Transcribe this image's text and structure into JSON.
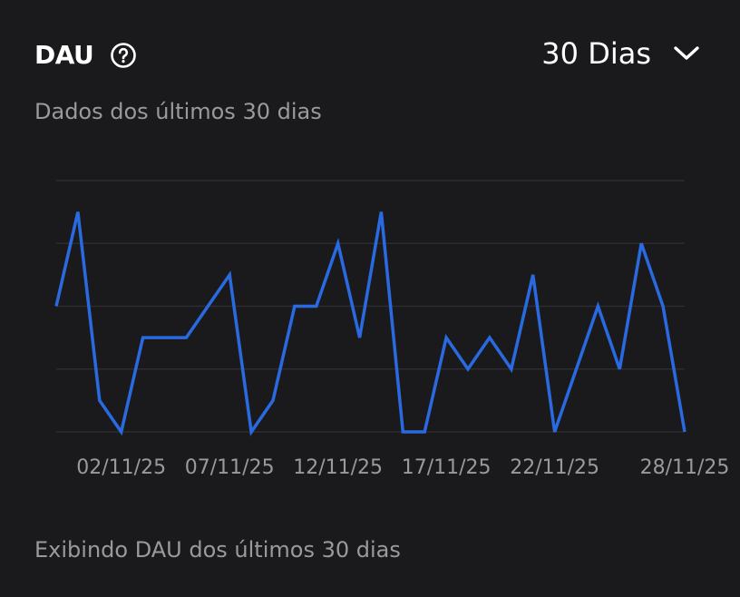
{
  "header": {
    "title": "DAU",
    "help_icon": "question-circle-icon",
    "range_select": {
      "value": "30 Dias",
      "icon": "chevron-down-icon"
    },
    "subtitle": "Dados dos últimos 30 dias"
  },
  "footer": {
    "text": "Exibindo DAU dos últimos 30 dias"
  },
  "colors": {
    "background": "#1a1a1d",
    "line": "#2a6ae0",
    "grid": "#2c2c31",
    "muted_text": "#9a9a9e",
    "text": "#ffffff"
  },
  "chart_data": {
    "type": "line",
    "title": "DAU",
    "subtitle": "Dados dos últimos 30 dias",
    "xlabel": "",
    "ylabel": "",
    "x": [
      "30/10/25",
      "31/10/25",
      "01/11/25",
      "02/11/25",
      "03/11/25",
      "04/11/25",
      "05/11/25",
      "06/11/25",
      "07/11/25",
      "08/11/25",
      "09/11/25",
      "10/11/25",
      "11/11/25",
      "12/11/25",
      "13/11/25",
      "14/11/25",
      "15/11/25",
      "16/11/25",
      "17/11/25",
      "18/11/25",
      "19/11/25",
      "20/11/25",
      "21/11/25",
      "22/11/25",
      "23/11/25",
      "24/11/25",
      "25/11/25",
      "26/11/25",
      "27/11/25",
      "28/11/25"
    ],
    "series": [
      {
        "name": "DAU",
        "values": [
          2,
          3.5,
          0.5,
          0,
          1.5,
          1.5,
          1.5,
          2,
          2.5,
          0,
          0.5,
          2,
          2,
          3,
          1.5,
          3.5,
          0,
          0,
          1.5,
          1,
          1.5,
          1,
          2.5,
          0,
          1,
          2,
          1,
          3,
          2,
          0
        ]
      }
    ],
    "tick_labels": [
      "02/11/25",
      "07/11/25",
      "12/11/25",
      "17/11/25",
      "22/11/25",
      "28/11/25"
    ],
    "ylim": [
      0,
      4
    ],
    "y_tick_labels_visible": false,
    "grid": true,
    "grid_levels": 5,
    "legend": "none"
  }
}
